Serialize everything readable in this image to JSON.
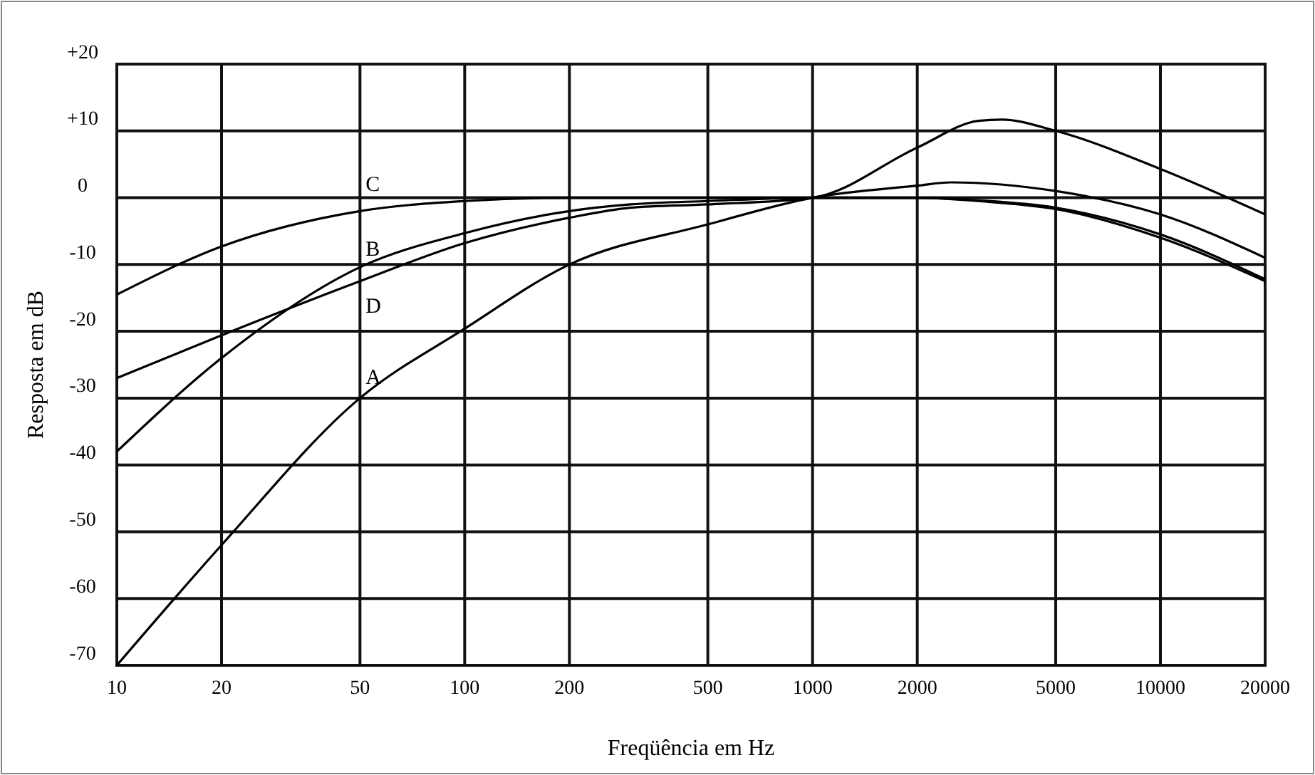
{
  "chart_data": {
    "type": "line",
    "xlabel": "Freqüência em Hz",
    "ylabel": "Resposta em dB",
    "log": "x",
    "grid": true,
    "marker": "none",
    "line_style": "solid",
    "xlim": [
      10,
      20000
    ],
    "xticks": [
      10,
      20,
      50,
      100,
      200,
      500,
      1000,
      2000,
      5000,
      10000,
      20000
    ],
    "ylim": [
      -70,
      20
    ],
    "yticks": [
      {
        "value": 20,
        "label": "+20"
      },
      {
        "value": 10,
        "label": "+10"
      },
      0,
      -10,
      -20,
      -30,
      -40,
      -50,
      -60,
      -70
    ],
    "series": [
      {
        "name": "C",
        "color": "#000000",
        "x": [
          10,
          20,
          50,
          100,
          200,
          500,
          1000,
          2000,
          3000,
          5000,
          10000,
          20000
        ],
        "values": [
          -14.5,
          -7.3,
          -2,
          -0.5,
          0,
          0,
          0,
          0,
          -0.5,
          -1.7,
          -6,
          -12.5
        ]
      },
      {
        "name": "B",
        "color": "#000000",
        "x": [
          10,
          20,
          50,
          100,
          200,
          300,
          500,
          1000,
          2000,
          3000,
          5000,
          10000,
          20000
        ],
        "values": [
          -38,
          -24,
          -10.4,
          -5.3,
          -2,
          -1,
          -0.5,
          0,
          0,
          -0.4,
          -1.5,
          -5.5,
          -12.2
        ]
      },
      {
        "name": "D",
        "color": "#000000",
        "x": [
          10,
          20,
          50,
          100,
          200,
          300,
          500,
          1000,
          2000,
          3000,
          3500,
          5000,
          10000,
          20000
        ],
        "values": [
          -27,
          -20.6,
          -12.5,
          -6.8,
          -3,
          -1.5,
          -1,
          0,
          7.5,
          11.5,
          11.7,
          10,
          4.3,
          -2.5
        ]
      },
      {
        "name": "A",
        "color": "#000000",
        "x": [
          10,
          20,
          50,
          100,
          200,
          500,
          1000,
          2000,
          2500,
          5000,
          10000,
          20000
        ],
        "values": [
          -70,
          -52,
          -30,
          -19.6,
          -10,
          -4,
          0,
          1.8,
          2.3,
          1,
          -2.5,
          -9
        ]
      }
    ]
  }
}
